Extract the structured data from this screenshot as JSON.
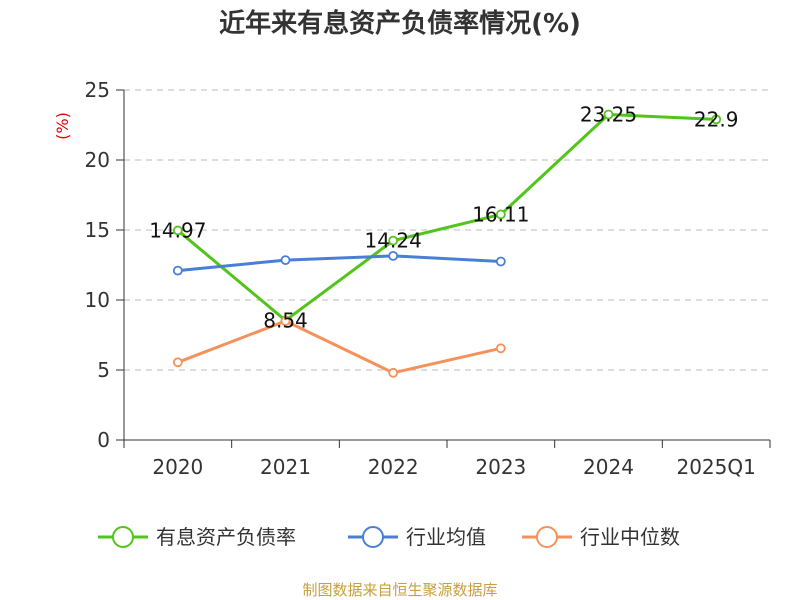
{
  "chart_data": {
    "type": "line",
    "title": "近年来有息资产负债率情况(%)",
    "unit_label": "(%)",
    "categories": [
      "2020",
      "2021",
      "2022",
      "2023",
      "2024",
      "2025Q1"
    ],
    "ylim": [
      0,
      25
    ],
    "yticks": [
      0,
      5,
      10,
      15,
      20,
      25
    ],
    "grid": true,
    "legend_position": "bottom",
    "series": [
      {
        "name": "有息资产负债率",
        "color": "#52c41a",
        "values": [
          14.97,
          8.54,
          14.24,
          16.11,
          23.25,
          22.9
        ],
        "labels": [
          "14.97",
          "8.54",
          "14.24",
          "16.11",
          "23.25",
          "22.9"
        ]
      },
      {
        "name": "行业均值",
        "color": "#4a7fd6",
        "values": [
          12.1,
          12.85,
          13.15,
          12.75,
          null,
          null
        ]
      },
      {
        "name": "行业中位数",
        "color": "#f5915a",
        "values": [
          5.55,
          8.5,
          4.8,
          6.55,
          null,
          null
        ]
      }
    ],
    "source": "制图数据来自恒生聚源数据库"
  }
}
